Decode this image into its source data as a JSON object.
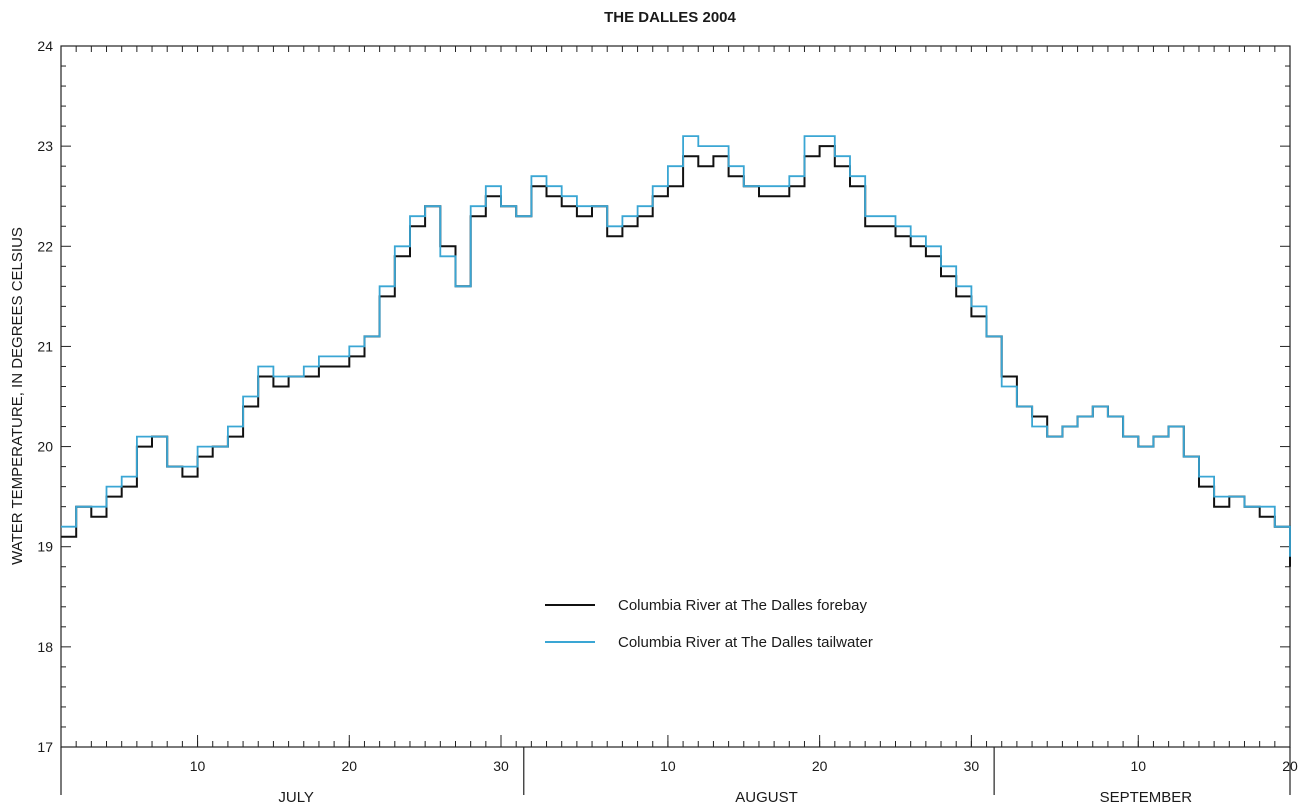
{
  "chart_data": {
    "type": "line",
    "title": "THE DALLES 2004",
    "ylabel": "WATER TEMPERATURE, IN DEGREES CELSIUS",
    "xlabel": "",
    "ylim": [
      17,
      24
    ],
    "xlim": [
      "2004-07-01",
      "2004-09-20"
    ],
    "yticks": [
      "17",
      "18",
      "19",
      "20",
      "21",
      "22",
      "23",
      "24"
    ],
    "x_day_ticks": [
      {
        "date": "2004-07-10",
        "label": "10"
      },
      {
        "date": "2004-07-20",
        "label": "20"
      },
      {
        "date": "2004-07-30",
        "label": "30"
      },
      {
        "date": "2004-08-10",
        "label": "10"
      },
      {
        "date": "2004-08-20",
        "label": "20"
      },
      {
        "date": "2004-08-30",
        "label": "30"
      },
      {
        "date": "2004-09-10",
        "label": "10"
      },
      {
        "date": "2004-09-20",
        "label": "20"
      }
    ],
    "months": [
      {
        "label": "JULY",
        "start": "2004-07-01",
        "end": "2004-08-01"
      },
      {
        "label": "AUGUST",
        "start": "2004-08-01",
        "end": "2004-09-01"
      },
      {
        "label": "SEPTEMBER",
        "start": "2004-09-01",
        "end": "2004-09-20"
      }
    ],
    "grid": false,
    "legend_position": "lower-center",
    "series": [
      {
        "name": "Columbia River at The Dalles forebay",
        "color": "#111111",
        "x": [
          "2004-07-01",
          "2004-07-02",
          "2004-07-03",
          "2004-07-04",
          "2004-07-05",
          "2004-07-06",
          "2004-07-07",
          "2004-07-08",
          "2004-07-09",
          "2004-07-10",
          "2004-07-11",
          "2004-07-12",
          "2004-07-13",
          "2004-07-14",
          "2004-07-15",
          "2004-07-16",
          "2004-07-17",
          "2004-07-18",
          "2004-07-19",
          "2004-07-20",
          "2004-07-21",
          "2004-07-22",
          "2004-07-23",
          "2004-07-24",
          "2004-07-25",
          "2004-07-26",
          "2004-07-27",
          "2004-07-28",
          "2004-07-29",
          "2004-07-30",
          "2004-07-31",
          "2004-08-01",
          "2004-08-02",
          "2004-08-03",
          "2004-08-04",
          "2004-08-05",
          "2004-08-06",
          "2004-08-07",
          "2004-08-08",
          "2004-08-09",
          "2004-08-10",
          "2004-08-11",
          "2004-08-12",
          "2004-08-13",
          "2004-08-14",
          "2004-08-15",
          "2004-08-16",
          "2004-08-17",
          "2004-08-18",
          "2004-08-19",
          "2004-08-20",
          "2004-08-21",
          "2004-08-22",
          "2004-08-23",
          "2004-08-24",
          "2004-08-25",
          "2004-08-26",
          "2004-08-27",
          "2004-08-28",
          "2004-08-29",
          "2004-08-30",
          "2004-08-31",
          "2004-09-01",
          "2004-09-02",
          "2004-09-03",
          "2004-09-04",
          "2004-09-05",
          "2004-09-06",
          "2004-09-07",
          "2004-09-08",
          "2004-09-09",
          "2004-09-10",
          "2004-09-11",
          "2004-09-12",
          "2004-09-13",
          "2004-09-14",
          "2004-09-15",
          "2004-09-16",
          "2004-09-17",
          "2004-09-18",
          "2004-09-19",
          "2004-09-20"
        ],
        "values": [
          19.1,
          19.4,
          19.3,
          19.5,
          19.6,
          20.0,
          20.1,
          19.8,
          19.7,
          19.9,
          20.0,
          20.1,
          20.4,
          20.7,
          20.6,
          20.7,
          20.7,
          20.8,
          20.8,
          20.9,
          21.1,
          21.5,
          21.9,
          22.2,
          22.4,
          22.0,
          21.6,
          22.3,
          22.5,
          22.4,
          22.3,
          22.6,
          22.5,
          22.4,
          22.3,
          22.4,
          22.1,
          22.2,
          22.3,
          22.5,
          22.6,
          22.9,
          22.8,
          22.9,
          22.7,
          22.6,
          22.5,
          22.5,
          22.6,
          22.9,
          23.0,
          22.8,
          22.6,
          22.2,
          22.2,
          22.1,
          22.0,
          21.9,
          21.7,
          21.5,
          21.3,
          21.1,
          20.7,
          20.4,
          20.3,
          20.1,
          20.2,
          20.3,
          20.4,
          20.3,
          20.1,
          20.0,
          20.1,
          20.2,
          19.9,
          19.6,
          19.4,
          19.5,
          19.4,
          19.3,
          19.2,
          18.8
        ]
      },
      {
        "name": "Columbia River at The Dalles tailwater",
        "color": "#3aa6d4",
        "x": [
          "2004-07-01",
          "2004-07-02",
          "2004-07-03",
          "2004-07-04",
          "2004-07-05",
          "2004-07-06",
          "2004-07-07",
          "2004-07-08",
          "2004-07-09",
          "2004-07-10",
          "2004-07-11",
          "2004-07-12",
          "2004-07-13",
          "2004-07-14",
          "2004-07-15",
          "2004-07-16",
          "2004-07-17",
          "2004-07-18",
          "2004-07-19",
          "2004-07-20",
          "2004-07-21",
          "2004-07-22",
          "2004-07-23",
          "2004-07-24",
          "2004-07-25",
          "2004-07-26",
          "2004-07-27",
          "2004-07-28",
          "2004-07-29",
          "2004-07-30",
          "2004-07-31",
          "2004-08-01",
          "2004-08-02",
          "2004-08-03",
          "2004-08-04",
          "2004-08-05",
          "2004-08-06",
          "2004-08-07",
          "2004-08-08",
          "2004-08-09",
          "2004-08-10",
          "2004-08-11",
          "2004-08-12",
          "2004-08-13",
          "2004-08-14",
          "2004-08-15",
          "2004-08-16",
          "2004-08-17",
          "2004-08-18",
          "2004-08-19",
          "2004-08-20",
          "2004-08-21",
          "2004-08-22",
          "2004-08-23",
          "2004-08-24",
          "2004-08-25",
          "2004-08-26",
          "2004-08-27",
          "2004-08-28",
          "2004-08-29",
          "2004-08-30",
          "2004-08-31",
          "2004-09-01",
          "2004-09-02",
          "2004-09-03",
          "2004-09-04",
          "2004-09-05",
          "2004-09-06",
          "2004-09-07",
          "2004-09-08",
          "2004-09-09",
          "2004-09-10",
          "2004-09-11",
          "2004-09-12",
          "2004-09-13",
          "2004-09-14",
          "2004-09-15",
          "2004-09-16",
          "2004-09-17",
          "2004-09-18",
          "2004-09-19",
          "2004-09-20"
        ],
        "values": [
          19.2,
          19.4,
          19.4,
          19.6,
          19.7,
          20.1,
          20.1,
          19.8,
          19.8,
          20.0,
          20.0,
          20.2,
          20.5,
          20.8,
          20.7,
          20.7,
          20.8,
          20.9,
          20.9,
          21.0,
          21.1,
          21.6,
          22.0,
          22.3,
          22.4,
          21.9,
          21.6,
          22.4,
          22.6,
          22.4,
          22.3,
          22.7,
          22.6,
          22.5,
          22.4,
          22.4,
          22.2,
          22.3,
          22.4,
          22.6,
          22.8,
          23.1,
          23.0,
          23.0,
          22.8,
          22.6,
          22.6,
          22.6,
          22.7,
          23.1,
          23.1,
          22.9,
          22.7,
          22.3,
          22.3,
          22.2,
          22.1,
          22.0,
          21.8,
          21.6,
          21.4,
          21.1,
          20.6,
          20.4,
          20.2,
          20.1,
          20.2,
          20.3,
          20.4,
          20.3,
          20.1,
          20.0,
          20.1,
          20.2,
          19.9,
          19.7,
          19.5,
          19.5,
          19.4,
          19.4,
          19.2,
          18.9
        ]
      }
    ]
  }
}
